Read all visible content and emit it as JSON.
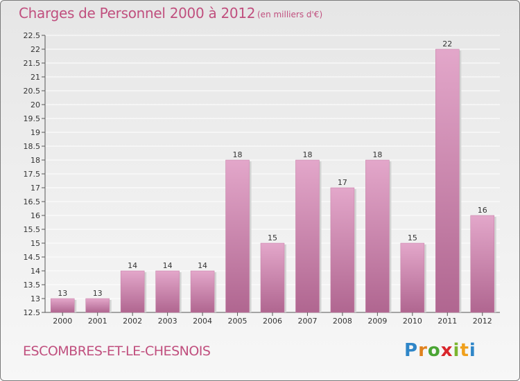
{
  "header": {
    "title": "Charges de Personnel 2000 à 2012",
    "subtitle": "(en milliers d'€)"
  },
  "footer": {
    "place": "ESCOMBRES-ET-LE-CHESNOIS",
    "brand": "Proxiti"
  },
  "chart_data": {
    "type": "bar",
    "title": "Charges de Personnel 2000 à 2012",
    "subtitle": "(en milliers d'€)",
    "xlabel": "",
    "ylabel": "",
    "categories": [
      "2000",
      "2001",
      "2002",
      "2003",
      "2004",
      "2005",
      "2006",
      "2007",
      "2008",
      "2009",
      "2010",
      "2011",
      "2012"
    ],
    "values": [
      13,
      13,
      14,
      14,
      14,
      18,
      15,
      18,
      17,
      18,
      15,
      22,
      16
    ],
    "value_labels": [
      "13",
      "13",
      "14",
      "14",
      "14",
      "18",
      "15",
      "18",
      "17",
      "18",
      "15",
      "22",
      "16"
    ],
    "ylim": [
      12.5,
      22.5
    ],
    "yticks": [
      12.5,
      13,
      13.5,
      14,
      14.5,
      15,
      15.5,
      16,
      16.5,
      17,
      17.5,
      18,
      18.5,
      19,
      19.5,
      20,
      20.5,
      21,
      21.5,
      22,
      22.5
    ],
    "grid": true,
    "legend": "none",
    "colors": {
      "bar_light": "#e3a7ca",
      "bar_dark": "#b06690",
      "grid": "#ffffff",
      "text_accent": "#c04f7e",
      "logo_p": "#2f86c8",
      "logo_r": "#e0821e",
      "logo_o": "#4aa534",
      "logo_x": "#d9262c",
      "logo_i1": "#7bb52f",
      "logo_t": "#f0a01c",
      "logo_i2": "#2f86c8"
    }
  }
}
